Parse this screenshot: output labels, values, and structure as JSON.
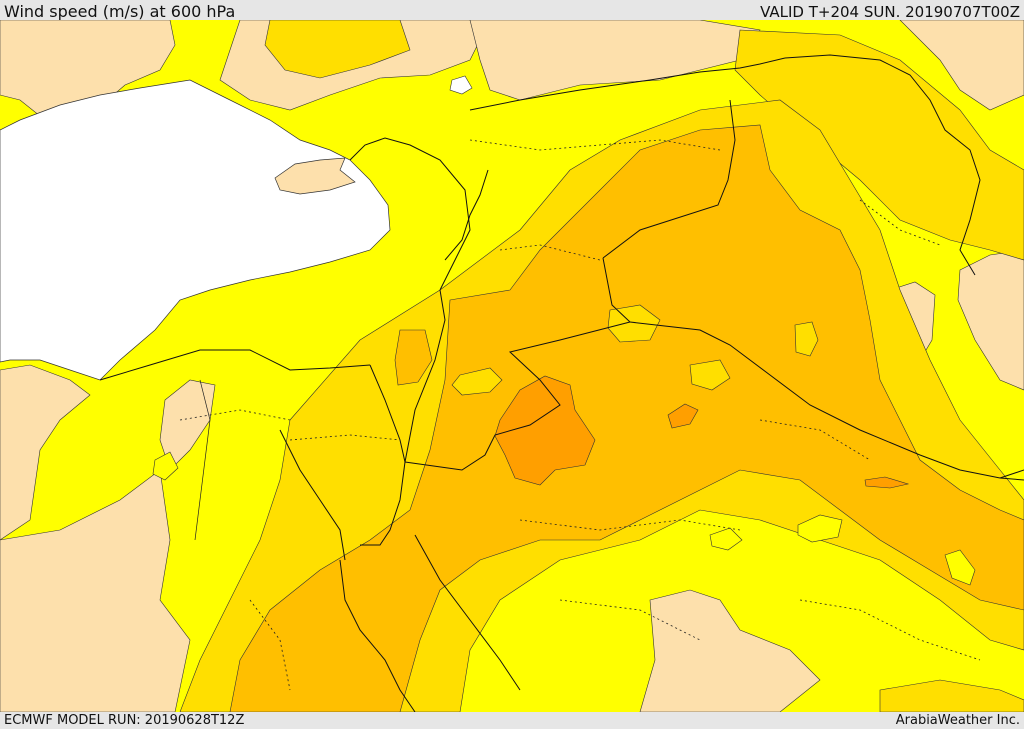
{
  "header": {
    "title": "Wind speed (m/s) at 600 hPa",
    "valid": "VALID T+204 SUN. 20190707T00Z"
  },
  "footer": {
    "model_run": "ECMWF MODEL RUN: 20190628T12Z",
    "credit": "ArabiaWeather Inc."
  },
  "colors": {
    "sea": "#ffffff",
    "land_calm": "#fde0ac",
    "band_1": "#ffff00",
    "band_2": "#ffdf00",
    "band_3": "#ffbf00",
    "band_4": "#ff9f00",
    "border": "#111111",
    "frame": "#e6e6e6"
  },
  "map": {
    "projection": "regional",
    "region": "Eastern Mediterranean and Middle East",
    "field": "wind speed"
  }
}
